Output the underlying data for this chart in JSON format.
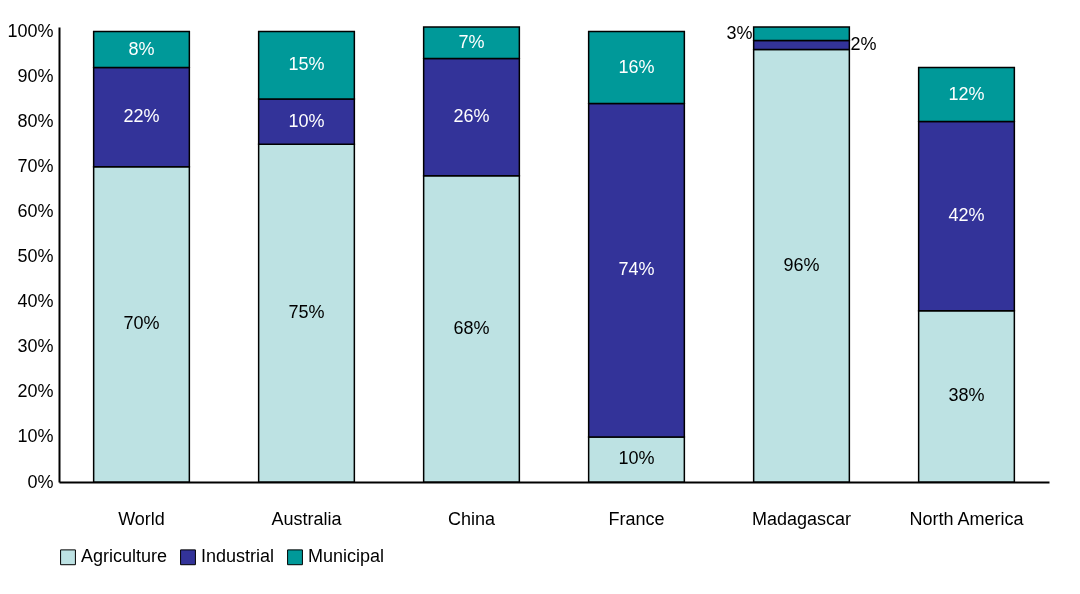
{
  "chart_data": {
    "type": "bar",
    "stacked": true,
    "legend": "bottom",
    "categories": [
      "World",
      "Australia",
      "China",
      "France",
      "Madagascar",
      "North America"
    ],
    "ylim": [
      0,
      101
    ],
    "yticks": [
      {
        "value": 0,
        "label": "0%"
      },
      {
        "value": 10,
        "label": "10%"
      },
      {
        "value": 20,
        "label": "20%"
      },
      {
        "value": 30,
        "label": "30%"
      },
      {
        "value": 40,
        "label": "40%"
      },
      {
        "value": 50,
        "label": "50%"
      },
      {
        "value": 60,
        "label": "60%"
      },
      {
        "value": 70,
        "label": "70%"
      },
      {
        "value": 80,
        "label": "80%"
      },
      {
        "value": 90,
        "label": "90%"
      },
      {
        "value": 100,
        "label": "100%"
      }
    ],
    "series": [
      {
        "name": "Agriculture",
        "color": "#bde2e3",
        "values": [
          70,
          75,
          68,
          10,
          96,
          38
        ],
        "value_labels": [
          "70%",
          "75%",
          "68%",
          "10%",
          "96%",
          "38%"
        ]
      },
      {
        "name": "Industrial",
        "color": "#333399",
        "values": [
          22,
          10,
          26,
          74,
          2,
          42
        ],
        "value_labels": [
          "22%",
          "10%",
          "26%",
          "74%",
          "2%",
          "42%"
        ]
      },
      {
        "name": "Municipal",
        "color": "#009999",
        "values": [
          8,
          15,
          7,
          16,
          3,
          12
        ],
        "value_labels": [
          "8%",
          "15%",
          "7%",
          "16%",
          "3%",
          "12%"
        ]
      }
    ]
  }
}
